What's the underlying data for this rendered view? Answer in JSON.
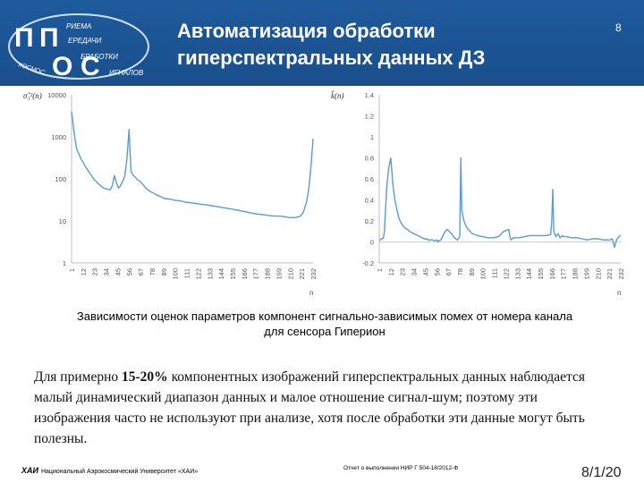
{
  "header": {
    "title_line1": "Автоматизация обработки",
    "title_line2": "гиперспектральных данных ДЗ",
    "slide_number": "8",
    "logo": {
      "big1": "П",
      "big2": "П",
      "big3": "О",
      "big4": "С",
      "w1": "РИЕМА",
      "w2": "ЕРЕДАЧИ",
      "w3": "БРАБОТКИ",
      "w4": "ИГНАЛОВ",
      "w5": "КОСМОС"
    },
    "bg_color": "#1e5a9c"
  },
  "chart_data": [
    {
      "type": "line",
      "y_label": "σ̂₁²(n)",
      "x_label": "n",
      "y_scale": "log",
      "ylim": [
        1,
        10000
      ],
      "y_ticks": [
        "10000",
        "1000",
        "100",
        "10",
        "1"
      ],
      "x_ticks": [
        "1",
        "12",
        "23",
        "34",
        "45",
        "56",
        "67",
        "78",
        "89",
        "100",
        "111",
        "122",
        "133",
        "144",
        "155",
        "166",
        "177",
        "188",
        "199",
        "210",
        "221",
        "232"
      ],
      "color": "#5b9bd5",
      "series": [
        {
          "x": [
            1,
            2,
            3,
            4,
            5,
            6,
            8,
            10,
            12,
            14,
            16,
            18,
            20,
            22,
            24,
            26,
            28,
            30,
            32,
            34,
            36,
            38,
            40,
            42,
            44,
            46,
            48,
            50,
            52,
            54,
            56,
            57,
            58,
            60,
            62,
            64,
            66,
            68,
            70,
            72,
            74,
            76,
            78,
            80,
            82,
            84,
            86,
            88,
            90,
            95,
            100,
            105,
            110,
            115,
            120,
            125,
            130,
            135,
            140,
            145,
            150,
            155,
            160,
            165,
            170,
            175,
            180,
            185,
            190,
            195,
            200,
            205,
            210,
            215,
            220,
            222,
            224,
            226,
            228,
            230,
            232
          ],
          "y": [
            4000,
            2500,
            1600,
            1000,
            700,
            500,
            400,
            300,
            250,
            200,
            170,
            140,
            120,
            100,
            90,
            80,
            72,
            65,
            60,
            58,
            56,
            55,
            70,
            120,
            80,
            60,
            70,
            90,
            120,
            300,
            1500,
            400,
            150,
            120,
            110,
            95,
            90,
            80,
            70,
            60,
            55,
            50,
            48,
            45,
            42,
            40,
            38,
            36,
            34,
            33,
            31,
            30,
            28,
            27,
            26,
            25,
            24,
            23,
            22,
            21,
            20,
            19,
            18,
            17,
            16,
            15,
            14.5,
            14,
            13.5,
            13,
            13,
            12.5,
            12,
            12,
            13,
            15,
            20,
            30,
            60,
            200,
            900
          ]
        }
      ]
    },
    {
      "type": "line",
      "y_label": "k̂(n)",
      "x_label": "n",
      "ylim": [
        -0.2,
        1.4
      ],
      "y_ticks": [
        "1.4",
        "1.2",
        "1",
        "0.8",
        "0.6",
        "0.4",
        "0.2",
        "0",
        "-0.2"
      ],
      "x_ticks": [
        "1",
        "12",
        "23",
        "34",
        "45",
        "56",
        "67",
        "78",
        "89",
        "100",
        "111",
        "122",
        "133",
        "144",
        "155",
        "166",
        "177",
        "188",
        "199",
        "210",
        "221",
        "232"
      ],
      "color": "#5b9bd5",
      "series": [
        {
          "x": [
            1,
            2,
            3,
            4,
            5,
            6,
            8,
            10,
            12,
            14,
            16,
            18,
            20,
            22,
            24,
            26,
            28,
            30,
            32,
            34,
            36,
            38,
            40,
            42,
            44,
            46,
            48,
            50,
            52,
            54,
            56,
            57,
            58,
            60,
            62,
            64,
            66,
            68,
            70,
            72,
            74,
            76,
            78,
            79,
            80,
            82,
            84,
            86,
            88,
            90,
            95,
            100,
            105,
            110,
            115,
            120,
            125,
            126,
            127,
            128,
            130,
            135,
            140,
            145,
            150,
            155,
            160,
            165,
            166,
            167,
            168,
            170,
            172,
            174,
            176,
            178,
            180,
            185,
            190,
            195,
            200,
            205,
            210,
            215,
            220,
            222,
            224,
            226,
            228,
            230,
            232
          ],
          "y": [
            0.02,
            0.02,
            0.03,
            0.03,
            0.04,
            0.1,
            0.5,
            0.7,
            0.8,
            0.55,
            0.4,
            0.3,
            0.22,
            0.18,
            0.15,
            0.13,
            0.12,
            0.1,
            0.09,
            0.08,
            0.07,
            0.06,
            0.05,
            0.04,
            0.03,
            0.03,
            0.02,
            0.02,
            0.02,
            0.01,
            0.02,
            0.0,
            0.01,
            0.02,
            0.06,
            0.1,
            0.12,
            0.1,
            0.08,
            0.05,
            0.03,
            0.02,
            0.05,
            0.8,
            0.3,
            0.2,
            0.15,
            0.12,
            0.1,
            0.08,
            0.06,
            0.05,
            0.04,
            0.04,
            0.05,
            0.1,
            0.12,
            0.05,
            0.02,
            0.03,
            0.04,
            0.04,
            0.05,
            0.06,
            0.06,
            0.06,
            0.06,
            0.07,
            0.2,
            0.5,
            0.1,
            0.05,
            0.08,
            0.04,
            0.06,
            0.05,
            0.05,
            0.04,
            0.04,
            0.03,
            0.02,
            0.03,
            0.03,
            0.02,
            0.02,
            0.02,
            0.03,
            -0.05,
            0.02,
            0.05,
            0.06
          ]
        }
      ]
    }
  ],
  "caption": {
    "line1": "Зависимости оценок параметров компонент сигнально-зависимых помех от номера канала",
    "line2": "для сенсора Гиперион"
  },
  "body": {
    "prefix": "Для примерно ",
    "bold": "15-20%",
    "suffix": " компонентных изображений гиперспектральных данных наблюдается малый динамический диапазон данных и малое отношение сигнал-шум; поэтому эти изображения часто не используют при анализе, хотя после обработки эти данные могут быть полезны."
  },
  "footer": {
    "org_mark": "ХАИ",
    "org": "Национальный Аэрокосмический Университет «ХАИ»",
    "report": "Отчет о выполнении НИР Г 504-18/2012-Ф",
    "page": "8/1/20"
  }
}
